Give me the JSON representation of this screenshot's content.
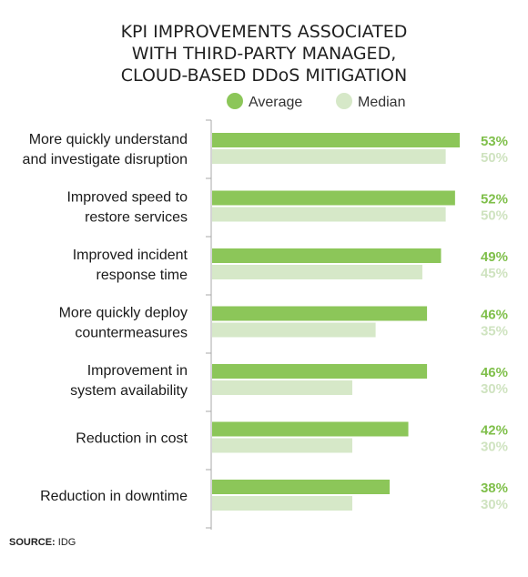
{
  "chart_data": {
    "type": "bar",
    "orientation": "horizontal",
    "title_lines": [
      "KPI IMPROVEMENTS ASSOCIATED",
      "WITH THIRD-PARTY MANAGED,",
      "CLOUD-BASED  DDoS MITIGATION"
    ],
    "categories": [
      [
        "More quickly understand",
        "and investigate disruption"
      ],
      [
        "Improved speed to",
        "restore services"
      ],
      [
        "Improved incident",
        "response time"
      ],
      [
        "More quickly deploy",
        "countermeasures"
      ],
      [
        "Improvement in",
        "system availability"
      ],
      [
        "Reduction in cost"
      ],
      [
        "Reduction in downtime"
      ]
    ],
    "series": [
      {
        "name": "Average",
        "values": [
          53,
          52,
          49,
          46,
          46,
          42,
          38
        ],
        "color": "#8cc659"
      },
      {
        "name": "Median",
        "values": [
          50,
          50,
          45,
          35,
          30,
          30,
          30
        ],
        "color": "#d6e8c8"
      }
    ],
    "value_suffix": "%",
    "xlim": [
      0,
      53
    ],
    "legend_position": "top",
    "grid": false
  },
  "source": {
    "label": "SOURCE:",
    "text": "IDG"
  }
}
